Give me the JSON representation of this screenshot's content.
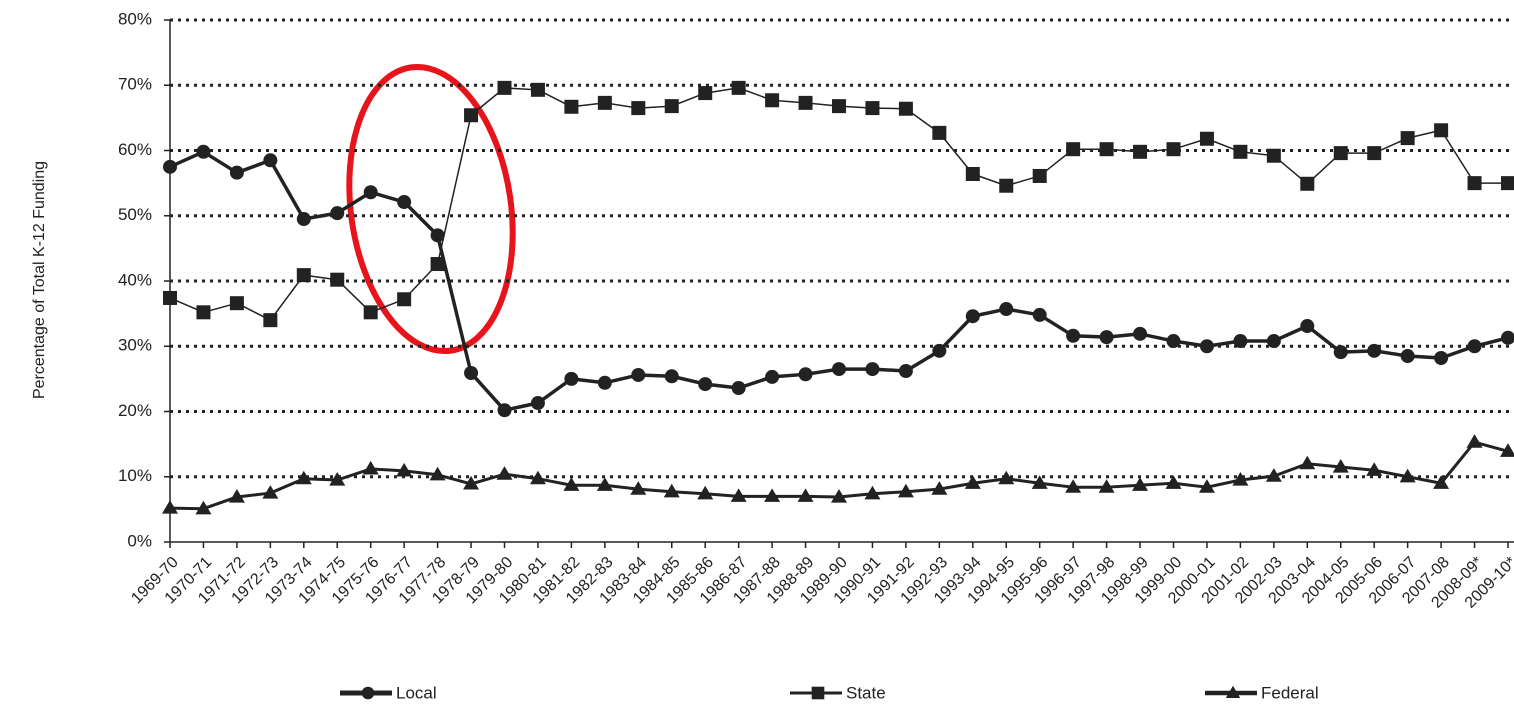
{
  "chart_data": {
    "type": "line",
    "y_label": "Percentage of Total K-12 Funding",
    "categories": [
      "1969-70",
      "1970-71",
      "1971-72",
      "1972-73",
      "1973-74",
      "1974-75",
      "1975-76",
      "1976-77",
      "1977-78",
      "1978-79",
      "1979-80",
      "1980-81",
      "1981-82",
      "1982-83",
      "1983-84",
      "1984-85",
      "1985-86",
      "1986-87",
      "1987-88",
      "1988-89",
      "1989-90",
      "1990-91",
      "1991-92",
      "1992-93",
      "1993-94",
      "1994-95",
      "1995-96",
      "1996-97",
      "1997-98",
      "1998-99",
      "1999-00",
      "2000-01",
      "2001-02",
      "2002-03",
      "2003-04",
      "2004-05",
      "2005-06",
      "2006-07",
      "2007-08",
      "2008-09*",
      "2009-10*"
    ],
    "series": [
      {
        "name": "Local",
        "color": "#222222",
        "marker": "circle",
        "values": [
          57.5,
          59.8,
          56.6,
          58.5,
          49.5,
          50.4,
          53.6,
          52.1,
          47.0,
          25.9,
          20.2,
          21.3,
          25.0,
          24.4,
          25.6,
          25.4,
          24.2,
          23.6,
          25.3,
          25.7,
          26.5,
          26.5,
          26.2,
          29.3,
          34.6,
          35.7,
          34.8,
          31.6,
          31.4,
          31.9,
          30.8,
          30.0,
          30.8,
          30.8,
          33.1,
          29.1,
          29.3,
          28.5,
          28.2,
          30.0,
          31.3
        ]
      },
      {
        "name": "State",
        "color": "#222222",
        "marker": "square",
        "values": [
          37.4,
          35.2,
          36.6,
          34.0,
          40.9,
          40.2,
          35.2,
          37.2,
          42.6,
          65.4,
          69.6,
          69.3,
          66.7,
          67.3,
          66.5,
          66.8,
          68.8,
          69.6,
          67.7,
          67.3,
          66.8,
          66.5,
          66.4,
          62.7,
          56.4,
          54.6,
          56.1,
          60.2,
          60.2,
          59.8,
          60.2,
          61.8,
          59.8,
          59.2,
          54.9,
          59.6,
          59.6,
          61.9,
          63.1,
          55.0,
          55.0
        ]
      },
      {
        "name": "Federal",
        "color": "#222222",
        "marker": "triangle",
        "values": [
          5.2,
          5.1,
          6.9,
          7.5,
          9.7,
          9.5,
          11.2,
          10.9,
          10.3,
          8.9,
          10.4,
          9.7,
          8.7,
          8.7,
          8.1,
          7.7,
          7.4,
          7.0,
          7.0,
          7.0,
          6.9,
          7.4,
          7.7,
          8.1,
          9.0,
          9.7,
          9.0,
          8.4,
          8.4,
          8.7,
          9.0,
          8.4,
          9.5,
          10.1,
          12.0,
          11.5,
          11.0,
          10.0,
          9.0,
          15.3,
          13.9
        ]
      }
    ],
    "ylim": [
      0,
      80
    ],
    "yticks": [
      {
        "value": 0,
        "label": "0%"
      },
      {
        "value": 10,
        "label": "10%"
      },
      {
        "value": 20,
        "label": "20%"
      },
      {
        "value": 30,
        "label": "30%"
      },
      {
        "value": 40,
        "label": "40%"
      },
      {
        "value": 50,
        "label": "50%"
      },
      {
        "value": 60,
        "label": "60%"
      },
      {
        "value": 70,
        "label": "70%"
      },
      {
        "value": 80,
        "label": "80%"
      }
    ],
    "grid": true,
    "legend": "bottom"
  }
}
